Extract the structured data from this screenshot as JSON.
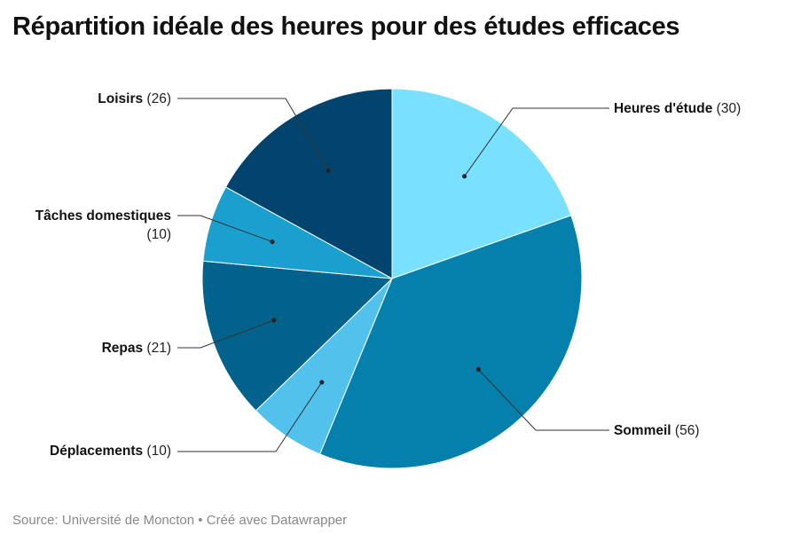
{
  "chart_data": {
    "type": "pie",
    "title": "Répartition idéale des heures pour des études efficaces",
    "slices": [
      {
        "label": "Heures d'étude",
        "value": 30,
        "color": "#79e1fd"
      },
      {
        "label": "Sommeil",
        "value": 56,
        "color": "#0580ad"
      },
      {
        "label": "Déplacements",
        "value": 10,
        "color": "#52c2ec"
      },
      {
        "label": "Repas",
        "value": 21,
        "color": "#03628b"
      },
      {
        "label": "Tâches domestiques",
        "value": 10,
        "color": "#1b9fcf"
      },
      {
        "label": "Loisirs",
        "value": 26,
        "color": "#03446e"
      }
    ]
  },
  "footer": {
    "source_label": "Source:",
    "source": "Université de Moncton",
    "separator": "•",
    "credit": "Créé avec Datawrapper"
  }
}
